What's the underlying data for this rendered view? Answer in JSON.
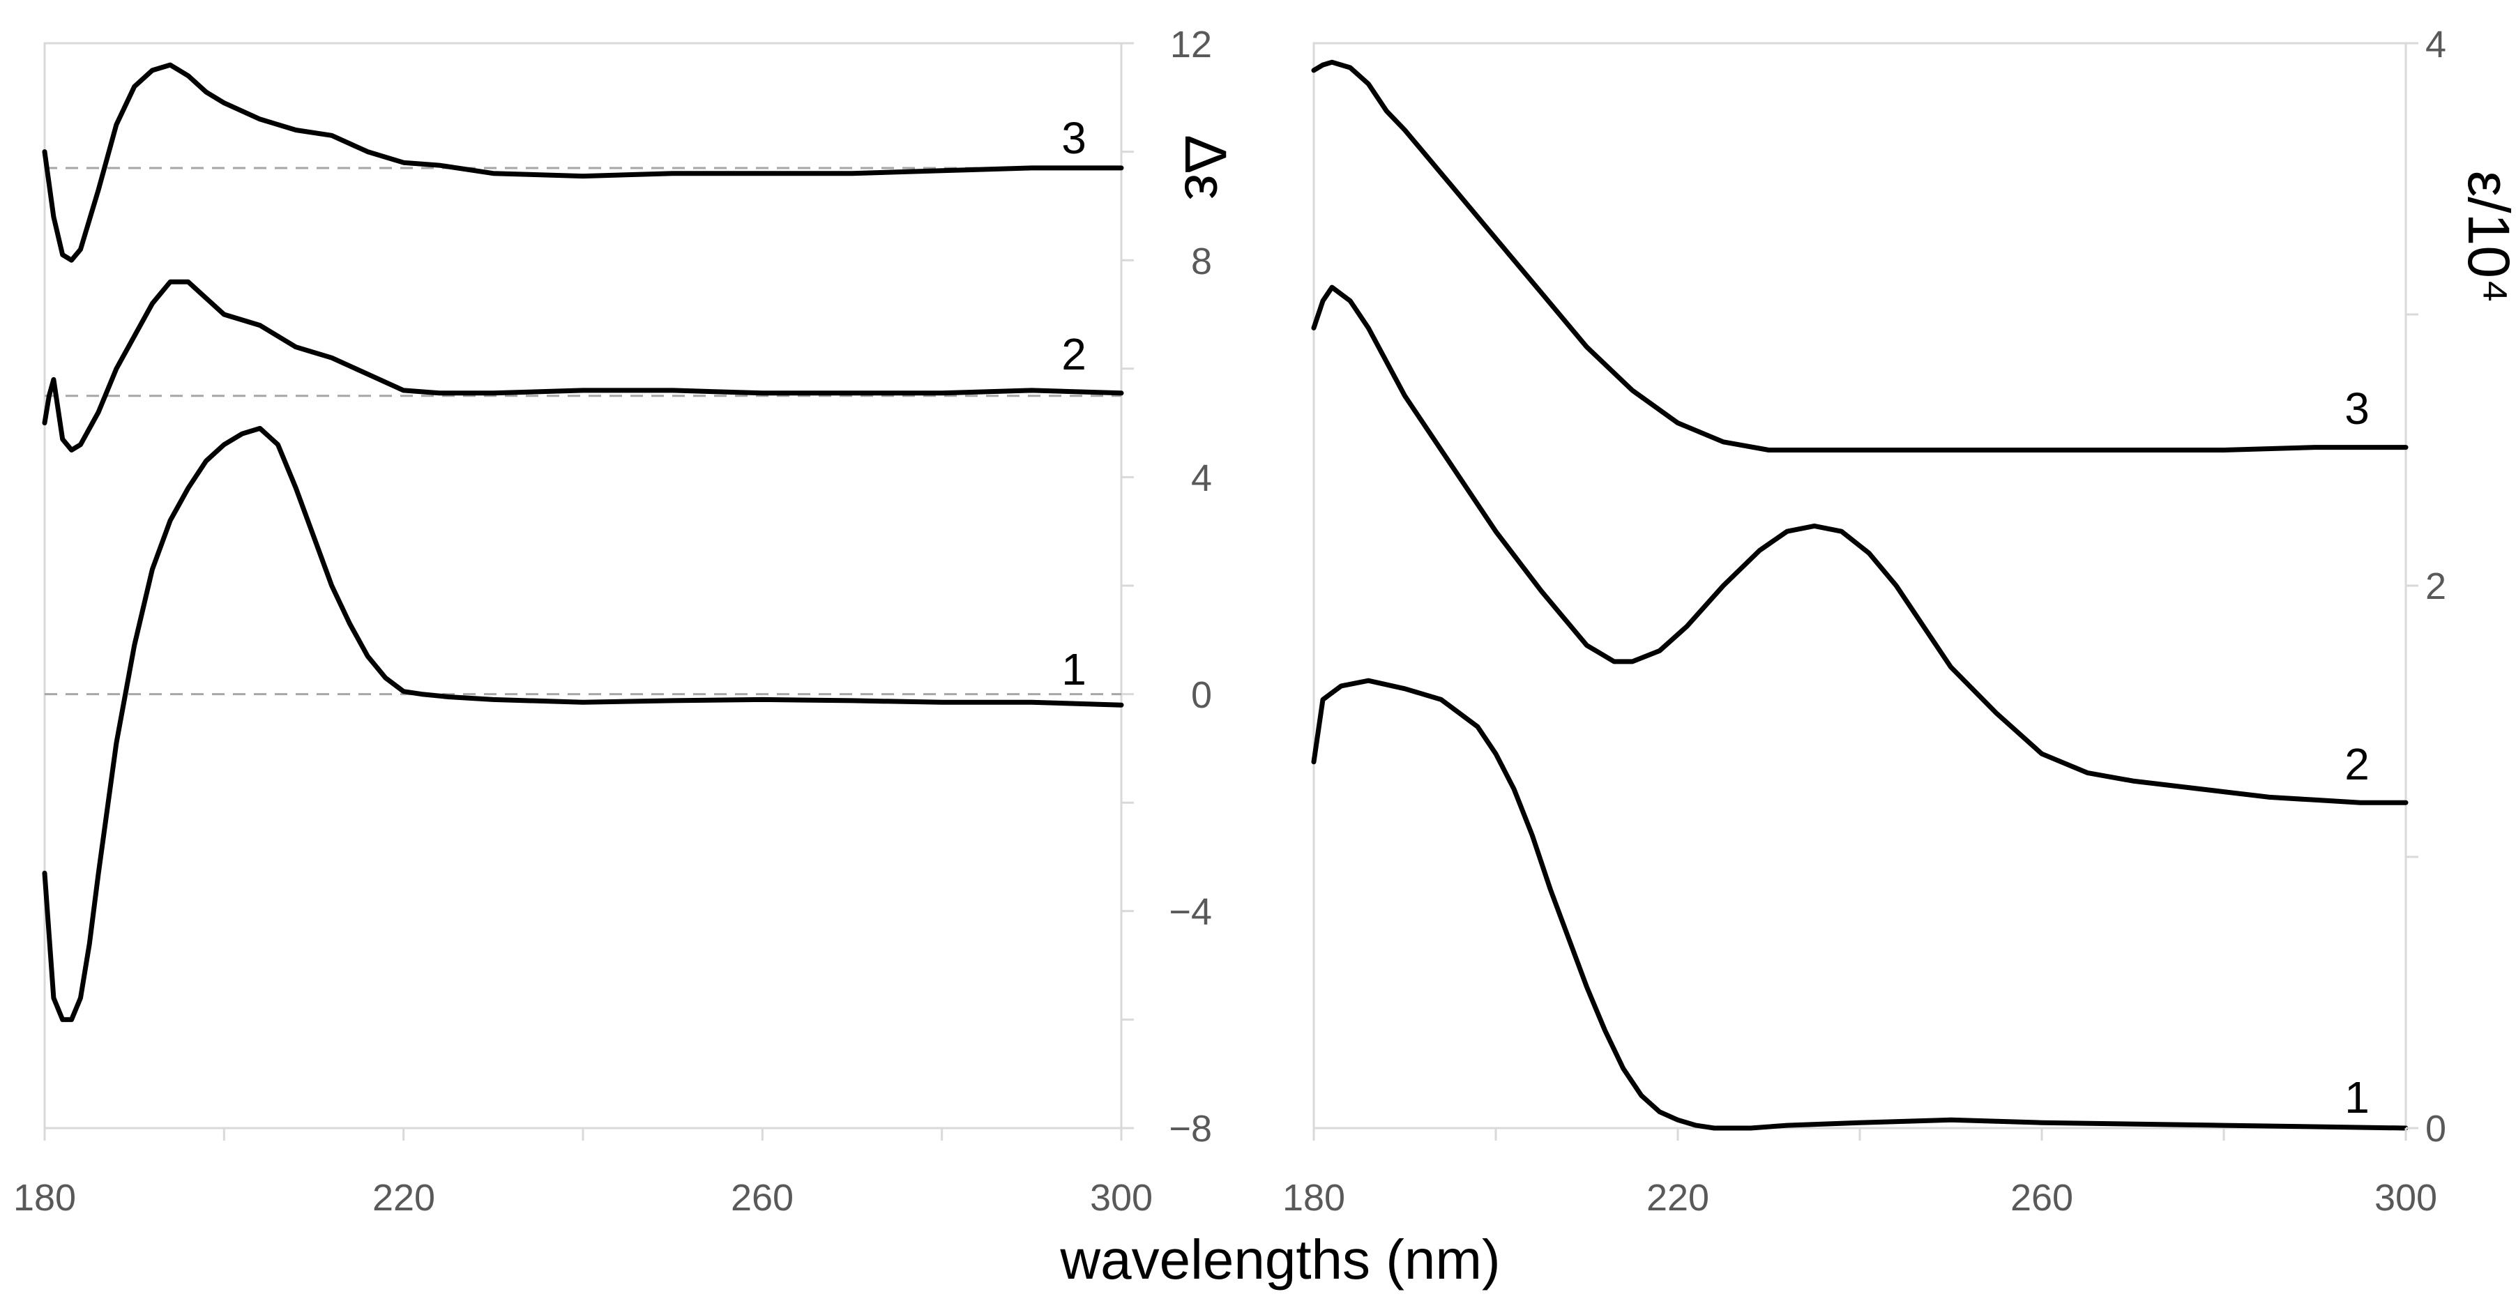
{
  "chart_data": [
    {
      "id": "cd",
      "type": "line",
      "ylabel": "Δε",
      "xlim": [
        180,
        300
      ],
      "ylim": [
        -8,
        12
      ],
      "xticks": [
        "180",
        "220",
        "260",
        "300"
      ],
      "yticks": [
        "−8",
        "−4",
        "0",
        "4",
        "8",
        "12"
      ],
      "baselines": [
        0,
        5.5,
        9.7
      ],
      "series": [
        {
          "name": "1",
          "x": [
            180,
            181,
            182,
            183,
            184,
            185,
            186,
            188,
            190,
            192,
            194,
            196,
            198,
            200,
            202,
            204,
            206,
            208,
            210,
            212,
            214,
            216,
            218,
            220,
            222,
            225,
            230,
            240,
            250,
            260,
            270,
            280,
            290,
            300
          ],
          "y": [
            -3.3,
            -5.6,
            -6.0,
            -6.0,
            -5.6,
            -4.6,
            -3.3,
            -0.9,
            0.9,
            2.3,
            3.2,
            3.8,
            4.3,
            4.6,
            4.8,
            4.9,
            4.6,
            3.8,
            2.9,
            2.0,
            1.3,
            0.7,
            0.3,
            0.05,
            0.0,
            -0.05,
            -0.1,
            -0.15,
            -0.12,
            -0.1,
            -0.12,
            -0.15,
            -0.15,
            -0.2
          ]
        },
        {
          "name": "2",
          "x": [
            180,
            180.5,
            181,
            182,
            183,
            184,
            186,
            188,
            190,
            192,
            194,
            196,
            198,
            200,
            204,
            208,
            212,
            216,
            220,
            224,
            230,
            240,
            250,
            260,
            270,
            280,
            290,
            300
          ],
          "y": [
            5.0,
            5.5,
            5.8,
            4.7,
            4.5,
            4.6,
            5.2,
            6.0,
            6.6,
            7.2,
            7.6,
            7.6,
            7.3,
            7.0,
            6.8,
            6.4,
            6.2,
            5.9,
            5.6,
            5.55,
            5.55,
            5.6,
            5.6,
            5.55,
            5.55,
            5.55,
            5.6,
            5.55
          ]
        },
        {
          "name": "3",
          "x": [
            180,
            181,
            182,
            183,
            184,
            186,
            188,
            190,
            192,
            194,
            196,
            198,
            200,
            204,
            208,
            212,
            216,
            220,
            224,
            230,
            240,
            250,
            260,
            270,
            280,
            290,
            300
          ],
          "y": [
            10.0,
            8.8,
            8.1,
            8.0,
            8.2,
            9.3,
            10.5,
            11.2,
            11.5,
            11.6,
            11.4,
            11.1,
            10.9,
            10.6,
            10.4,
            10.3,
            10.0,
            9.8,
            9.75,
            9.6,
            9.55,
            9.6,
            9.6,
            9.6,
            9.65,
            9.7,
            9.7
          ]
        }
      ]
    },
    {
      "id": "abs",
      "type": "line",
      "ylabel": "ε/10⁴",
      "xlim": [
        180,
        300
      ],
      "ylim": [
        0,
        4
      ],
      "xticks": [
        "180",
        "220",
        "260",
        "300"
      ],
      "yticks": [
        "0",
        "2",
        "4"
      ],
      "series": [
        {
          "name": "1",
          "x": [
            180,
            181,
            183,
            186,
            190,
            194,
            198,
            200,
            202,
            204,
            206,
            208,
            210,
            212,
            214,
            216,
            218,
            220,
            222,
            224,
            226,
            228,
            232,
            240,
            250,
            260,
            280,
            300
          ],
          "y": [
            1.35,
            1.58,
            1.63,
            1.65,
            1.62,
            1.58,
            1.48,
            1.38,
            1.25,
            1.08,
            0.88,
            0.7,
            0.52,
            0.36,
            0.22,
            0.12,
            0.06,
            0.03,
            0.01,
            0.0,
            0.0,
            0.0,
            0.01,
            0.02,
            0.03,
            0.02,
            0.01,
            0.0
          ]
        },
        {
          "name": "2",
          "x": [
            180,
            181,
            182,
            184,
            186,
            190,
            195,
            200,
            205,
            210,
            213,
            215,
            218,
            221,
            225,
            229,
            232,
            235,
            238,
            241,
            244,
            247,
            250,
            255,
            260,
            265,
            270,
            275,
            280,
            285,
            290,
            295,
            300
          ],
          "y": [
            2.95,
            3.05,
            3.1,
            3.05,
            2.95,
            2.7,
            2.45,
            2.2,
            1.98,
            1.78,
            1.72,
            1.72,
            1.76,
            1.85,
            2.0,
            2.13,
            2.2,
            2.22,
            2.2,
            2.12,
            2.0,
            1.85,
            1.7,
            1.53,
            1.38,
            1.31,
            1.28,
            1.26,
            1.24,
            1.22,
            1.21,
            1.2,
            1.2
          ]
        },
        {
          "name": "3",
          "x": [
            180,
            181,
            182,
            183,
            184,
            186,
            188,
            190,
            195,
            200,
            205,
            210,
            215,
            220,
            225,
            230,
            235,
            240,
            250,
            260,
            270,
            280,
            290,
            300
          ],
          "y": [
            3.9,
            3.92,
            3.93,
            3.92,
            3.91,
            3.85,
            3.75,
            3.68,
            3.48,
            3.28,
            3.08,
            2.88,
            2.72,
            2.6,
            2.53,
            2.5,
            2.5,
            2.5,
            2.5,
            2.5,
            2.5,
            2.5,
            2.51,
            2.51
          ]
        }
      ]
    }
  ],
  "xlabel": "wavelengths (nm)"
}
